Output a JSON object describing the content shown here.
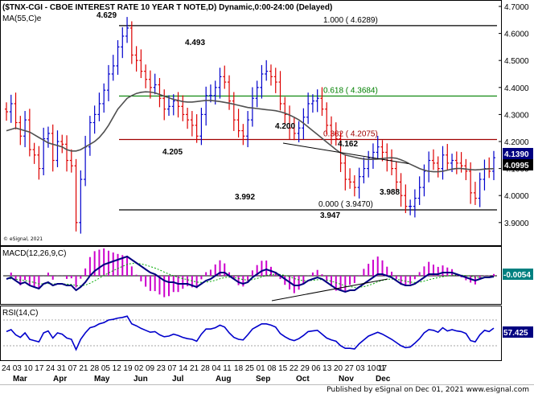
{
  "chart_title": "($TNX-CGI - CBOE INTEREST RATE 10 YEAR T NOTE,D) Dynamic,0:00-24:00 (Delayed)",
  "ma_label": "MA(55,C)e",
  "copyright": "© eSignal, 2021",
  "footer": "Published by eSignal on Dec 01, 2021 www.esignal.com",
  "colors": {
    "up": "#0000cc",
    "down": "#dd0000",
    "ma": "#505050",
    "fib100": "#000000",
    "fib618": "#008000",
    "fib382": "#a00000",
    "fib000": "#000000",
    "price_badge": "#000080",
    "ma_badge": "#000000",
    "macd_line": "#000080",
    "macd_signal": "#00aa00",
    "macd_hist": "#cc00cc",
    "rsi": "#0000cc",
    "macd_badge": "#008080",
    "rsi_badge": "#000080"
  },
  "chart_data": [
    {
      "type": "candlestick",
      "price_axis": [
        "4.7000",
        "4.6000",
        "4.5000",
        "4.4000",
        "4.3000",
        "4.2000",
        "4.1000",
        "4.0000",
        "3.9000"
      ],
      "ylim": [
        3.85,
        4.72
      ],
      "x_tick_labels": [
        "24",
        "03",
        "10",
        "17",
        "24",
        "31",
        "07",
        "21",
        "28",
        "05",
        "12",
        "19",
        "02",
        "09",
        "23",
        "07",
        "14",
        "21",
        "28",
        "04",
        "11",
        "18",
        "25",
        "01",
        "08",
        "15",
        "22",
        "29",
        "06",
        "13",
        "20",
        "27",
        "03",
        "10",
        "17",
        "01"
      ],
      "month_labels": [
        "Mar",
        "Apr",
        "May",
        "Jun",
        "Jul",
        "Aug",
        "Sep",
        "Oct",
        "Nov",
        "Dec"
      ],
      "price_badge": "4.1390",
      "ma_badge": "4.0995",
      "fib_levels": [
        {
          "label": "1.000  ( 4.6289)",
          "value": 4.6289,
          "color_key": "fib100"
        },
        {
          "label": "0.618  ( 4.3684)",
          "value": 4.3684,
          "color_key": "fib618"
        },
        {
          "label": "0.382  ( 4.2075)",
          "value": 4.2075,
          "color_key": "fib382"
        },
        {
          "label": "0.000  ( 3.9470)",
          "value": 3.947,
          "color_key": "fib000"
        }
      ],
      "annotations": [
        "4.629",
        "4.493",
        "4.205",
        "4.200",
        "4.162",
        "3.992",
        "3.947",
        "3.988"
      ],
      "close": [
        4.31,
        4.34,
        4.27,
        4.22,
        4.28,
        4.17,
        4.15,
        4.1,
        4.21,
        4.23,
        4.13,
        4.2,
        4.19,
        4.13,
        4.11,
        3.9,
        4.06,
        4.18,
        4.27,
        4.3,
        4.34,
        4.39,
        4.45,
        4.48,
        4.55,
        4.59,
        4.62,
        4.52,
        4.5,
        4.46,
        4.43,
        4.4,
        4.41,
        4.36,
        4.32,
        4.33,
        4.35,
        4.33,
        4.3,
        4.28,
        4.26,
        4.22,
        4.3,
        4.37,
        4.37,
        4.4,
        4.44,
        4.42,
        4.35,
        4.28,
        4.24,
        4.22,
        4.28,
        4.36,
        4.4,
        4.45,
        4.46,
        4.44,
        4.42,
        4.34,
        4.3,
        4.25,
        4.23,
        4.25,
        4.29,
        4.34,
        4.35,
        4.36,
        4.32,
        4.26,
        4.23,
        4.21,
        4.12,
        4.06,
        4.05,
        4.03,
        4.07,
        4.1,
        4.14,
        4.16,
        4.18,
        4.16,
        4.13,
        4.1,
        4.05,
        4.0,
        3.96,
        3.96,
        3.99,
        4.03,
        4.09,
        4.13,
        4.12,
        4.1,
        4.15,
        4.12,
        4.13,
        4.12,
        4.11,
        4.09,
        4.01,
        3.99,
        4.06,
        4.1,
        4.09,
        4.14
      ],
      "ma55": [
        4.24,
        4.245,
        4.25,
        4.245,
        4.24,
        4.235,
        4.225,
        4.215,
        4.205,
        4.195,
        4.19,
        4.185,
        4.18,
        4.17,
        4.165,
        4.165,
        4.17,
        4.18,
        4.19,
        4.2,
        4.215,
        4.235,
        4.26,
        4.29,
        4.32,
        4.34,
        4.36,
        4.37,
        4.378,
        4.382,
        4.384,
        4.383,
        4.38,
        4.374,
        4.368,
        4.362,
        4.356,
        4.352,
        4.348,
        4.346,
        4.346,
        4.348,
        4.35,
        4.352,
        4.352,
        4.35,
        4.348,
        4.345,
        4.342,
        4.338,
        4.334,
        4.33,
        4.326,
        4.324,
        4.322,
        4.32,
        4.318,
        4.316,
        4.314,
        4.31,
        4.305,
        4.298,
        4.29,
        4.28,
        4.268,
        4.254,
        4.24,
        4.226,
        4.212,
        4.198,
        4.184,
        4.17,
        4.158,
        4.15,
        4.146,
        4.142,
        4.138,
        4.135,
        4.134,
        4.134,
        4.135,
        4.137,
        4.139,
        4.14,
        4.138,
        4.132,
        4.125,
        4.116,
        4.108,
        4.1,
        4.094,
        4.09,
        4.088,
        4.088,
        4.09,
        4.094,
        4.098,
        4.1,
        4.1,
        4.098,
        4.096,
        4.095,
        4.096,
        4.098,
        4.099,
        4.0995
      ]
    },
    {
      "type": "line",
      "title": "MACD(12,26,9,C)",
      "badge": "-0.0054",
      "ylim": [
        -0.12,
        0.12
      ],
      "macd": [
        -0.02,
        -0.01,
        -0.03,
        -0.05,
        -0.04,
        -0.06,
        -0.07,
        -0.08,
        -0.05,
        -0.04,
        -0.06,
        -0.05,
        -0.05,
        -0.06,
        -0.06,
        -0.09,
        -0.07,
        -0.04,
        0.0,
        0.03,
        0.05,
        0.07,
        0.08,
        0.09,
        0.1,
        0.11,
        0.12,
        0.1,
        0.08,
        0.06,
        0.04,
        0.02,
        0.01,
        -0.01,
        -0.03,
        -0.04,
        -0.04,
        -0.05,
        -0.05,
        -0.05,
        -0.06,
        -0.07,
        -0.05,
        -0.03,
        -0.02,
        0.0,
        0.02,
        0.02,
        0.0,
        -0.02,
        -0.04,
        -0.05,
        -0.04,
        -0.01,
        0.01,
        0.03,
        0.04,
        0.03,
        0.02,
        0.0,
        -0.02,
        -0.04,
        -0.06,
        -0.06,
        -0.05,
        -0.03,
        -0.02,
        -0.01,
        -0.02,
        -0.04,
        -0.06,
        -0.08,
        -0.09,
        -0.1,
        -0.09,
        -0.09,
        -0.07,
        -0.05,
        -0.03,
        -0.01,
        0.01,
        0.01,
        0.0,
        -0.01,
        -0.03,
        -0.05,
        -0.06,
        -0.06,
        -0.05,
        -0.03,
        -0.01,
        0.01,
        0.01,
        0.01,
        0.02,
        0.02,
        0.02,
        0.01,
        0.0,
        -0.01,
        -0.02,
        -0.03,
        -0.02,
        -0.01,
        -0.01,
        -0.005
      ]
    },
    {
      "type": "line",
      "title": "RSI(14,C)",
      "badge": "57.425",
      "ylim": [
        15,
        85
      ],
      "rsi": [
        52,
        55,
        47,
        43,
        50,
        40,
        38,
        36,
        50,
        53,
        42,
        50,
        48,
        42,
        40,
        24,
        40,
        50,
        58,
        60,
        64,
        66,
        70,
        71,
        73,
        74,
        76,
        64,
        61,
        57,
        54,
        51,
        52,
        47,
        44,
        45,
        48,
        46,
        43,
        41,
        40,
        37,
        48,
        56,
        56,
        58,
        62,
        59,
        50,
        43,
        40,
        39,
        47,
        56,
        60,
        64,
        64,
        62,
        59,
        49,
        44,
        40,
        38,
        41,
        46,
        52,
        53,
        54,
        48,
        42,
        39,
        37,
        30,
        26,
        26,
        25,
        33,
        39,
        45,
        48,
        51,
        48,
        44,
        40,
        35,
        30,
        27,
        28,
        34,
        41,
        50,
        55,
        54,
        51,
        58,
        53,
        55,
        53,
        52,
        49,
        38,
        36,
        47,
        54,
        52,
        57.425
      ]
    }
  ]
}
